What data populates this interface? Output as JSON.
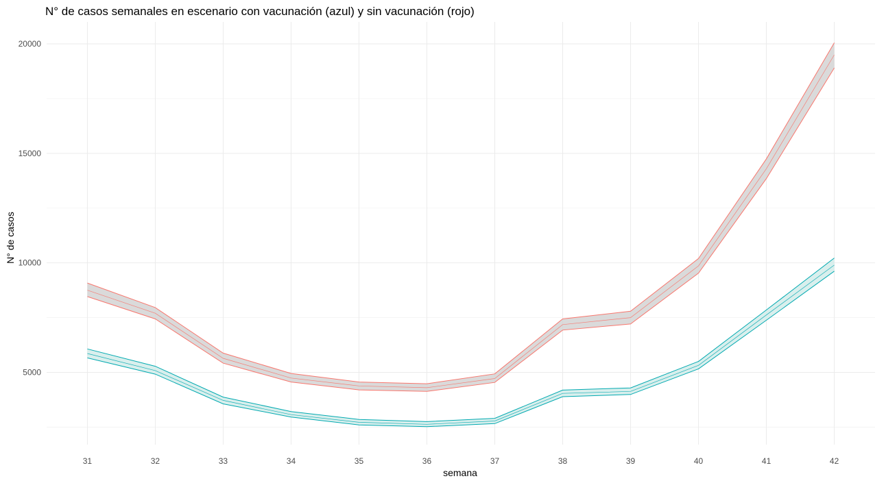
{
  "chart_data": {
    "type": "line",
    "title": "N° de casos semanales en escenario con vacunación (azul) y sin vacunación (rojo)",
    "xlabel": "semana",
    "ylabel": "N° de casos",
    "x": [
      31,
      32,
      33,
      34,
      35,
      36,
      37,
      38,
      39,
      40,
      41,
      42
    ],
    "xlim": [
      30.4,
      42.6
    ],
    "ylim": [
      1700,
      21000
    ],
    "yticks": [
      5000,
      10000,
      15000,
      20000
    ],
    "grid": true,
    "legend": "none",
    "series": [
      {
        "color": "#f8766d",
        "band_fill": "#d4d4d4",
        "mean": [
          8750,
          7700,
          5640,
          4740,
          4380,
          4300,
          4720,
          7180,
          7500,
          9860,
          14300,
          19500
        ],
        "upper": [
          9080,
          7960,
          5880,
          4950,
          4560,
          4480,
          4930,
          7440,
          7790,
          10200,
          14750,
          20050
        ],
        "lower": [
          8460,
          7440,
          5420,
          4560,
          4200,
          4130,
          4540,
          6930,
          7210,
          9530,
          13850,
          18900
        ]
      },
      {
        "color": "#00a9b0",
        "band_fill": "#d2ecea",
        "mean": [
          5860,
          5080,
          3720,
          3070,
          2720,
          2630,
          2780,
          4040,
          4130,
          5320,
          7620,
          9900
        ],
        "upper": [
          6070,
          5280,
          3870,
          3210,
          2850,
          2750,
          2900,
          4190,
          4290,
          5500,
          7850,
          10220
        ],
        "lower": [
          5660,
          4920,
          3560,
          2960,
          2600,
          2520,
          2660,
          3890,
          3990,
          5160,
          7380,
          9620
        ]
      }
    ]
  }
}
